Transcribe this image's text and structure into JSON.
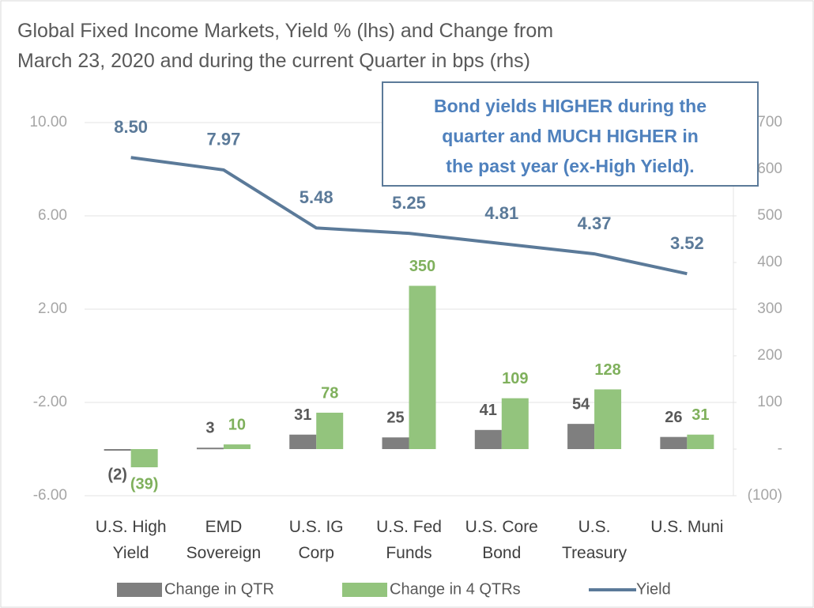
{
  "chart_data": {
    "type": "bar_line",
    "title": "Global Fixed Income Markets, Yield % (lhs) and Change from\nMarch 23, 2020 and during the current Quarter in bps (rhs)",
    "annotation": "Bond yields HIGHER during the\nquarter and MUCH HIGHER in\nthe past year (ex-High Yield).",
    "categories": [
      "U.S. High\nYield",
      "EMD\nSovereign",
      "U.S. IG\nCorp",
      "U.S. Fed\nFunds",
      "U.S. Core\nBond",
      "U.S.\nTreasury",
      "U.S. Muni"
    ],
    "series": [
      {
        "name": "Change in QTR",
        "type": "bar",
        "axis": "y2",
        "color": "#7f7f7f",
        "values": [
          -2,
          3,
          31,
          25,
          41,
          54,
          26
        ],
        "value_labels": [
          "(2)",
          "3",
          "31",
          "25",
          "41",
          "54",
          "26"
        ]
      },
      {
        "name": "Change in 4 QTRs",
        "type": "bar",
        "axis": "y2",
        "color": "#93c47d",
        "values": [
          -39,
          10,
          78,
          350,
          109,
          128,
          31
        ],
        "value_labels": [
          "(39)",
          "10",
          "78",
          "350",
          "109",
          "128",
          "31"
        ]
      },
      {
        "name": "Yield",
        "type": "line",
        "axis": "y",
        "color": "#5b7a99",
        "values": [
          8.5,
          7.97,
          5.48,
          5.25,
          4.81,
          4.37,
          3.52
        ],
        "value_labels": [
          "8.50",
          "7.97",
          "5.48",
          "5.25",
          "4.81",
          "4.37",
          "3.52"
        ]
      }
    ],
    "ylim": [
      -6,
      10
    ],
    "yticks": [
      {
        "value": -6,
        "label": "-6.00"
      },
      {
        "value": -2,
        "label": "-2.00"
      },
      {
        "value": 2,
        "label": "2.00"
      },
      {
        "value": 6,
        "label": "6.00"
      },
      {
        "value": 10,
        "label": "10.00"
      }
    ],
    "y2lim": [
      -100,
      700
    ],
    "y2ticks": [
      {
        "value": -100,
        "label": "(100)"
      },
      {
        "value": 0,
        "label": "-"
      },
      100,
      200,
      300,
      400,
      500,
      600,
      700
    ],
    "grid": true,
    "legend": "bottom"
  }
}
